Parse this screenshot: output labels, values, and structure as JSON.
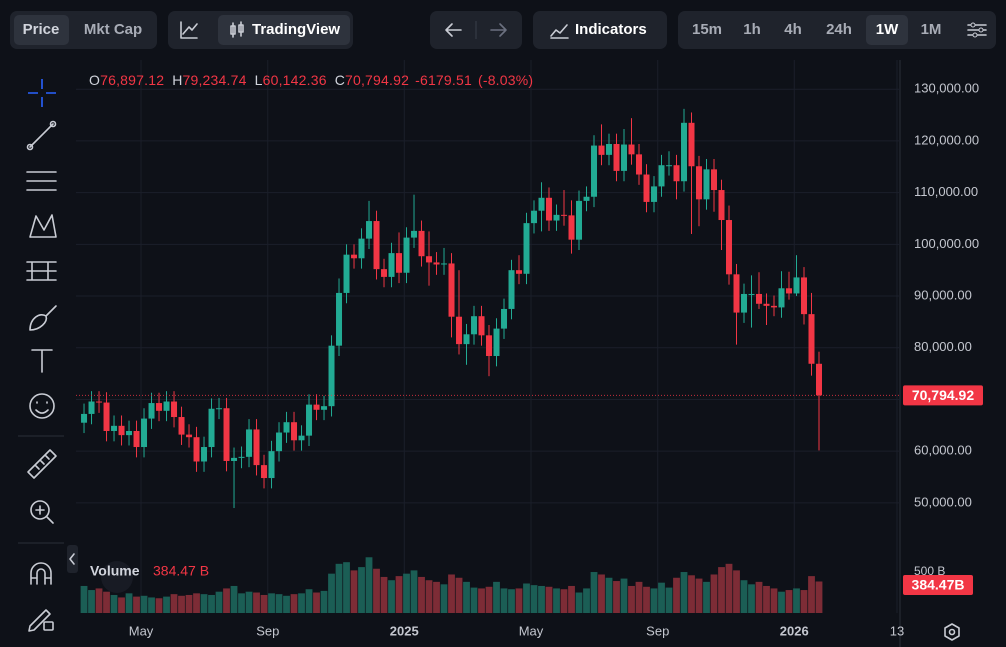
{
  "toolbar": {
    "price": "Price",
    "mkt_cap": "Mkt Cap",
    "tradingview": "TradingView",
    "indicators": "Indicators",
    "timeframes": [
      "15m",
      "1h",
      "4h",
      "24h",
      "1W",
      "1M"
    ],
    "active_timeframe": 4
  },
  "chart_data": {
    "type": "candlestick",
    "up_color": "#22ab94",
    "down_color": "#f23645",
    "ohlc_header": [
      {
        "key": "O",
        "label": "76,897.12"
      },
      {
        "key": "H",
        "label": "79,234.74"
      },
      {
        "key": "L",
        "label": "60,142.36"
      },
      {
        "key": "C",
        "label": "70,794.92"
      }
    ],
    "change_label": "-6179.51",
    "change_pct_label": "(-8.03%)",
    "last_price_label": "70,794.92",
    "xlim": [
      -1.07,
      108.8
    ],
    "xticks": [
      {
        "value": 7.6,
        "label": "May"
      },
      {
        "value": 24.5,
        "label": "Sep"
      },
      {
        "value": 42.7,
        "label": "2025"
      },
      {
        "value": 59.6,
        "label": "May"
      },
      {
        "value": 76.5,
        "label": "Sep"
      },
      {
        "value": 94.7,
        "label": "2026"
      },
      {
        "value": 108.4,
        "label": "13"
      }
    ],
    "ylim": [
      28700,
      134100
    ],
    "yticks": [
      {
        "value": 50000,
        "label": "50,000.00"
      },
      {
        "value": 60000,
        "label": "60,000.00"
      },
      {
        "value": 70000,
        "label": "70,000.00"
      },
      {
        "value": 80000,
        "label": "80,000.00"
      },
      {
        "value": 90000,
        "label": "90,000.00"
      },
      {
        "value": 100000,
        "label": "100,000.00"
      },
      {
        "value": 110000,
        "label": "110,000.00"
      },
      {
        "value": 120000,
        "label": "120,000.00"
      },
      {
        "value": 130000,
        "label": "130,000.00"
      }
    ],
    "open": [
      65500,
      67200,
      69600,
      69400,
      63900,
      64900,
      63100,
      63900,
      60800,
      66300,
      69300,
      67800,
      69600,
      66600,
      63200,
      62700,
      58000,
      60800,
      68200,
      68300,
      58100,
      58700,
      58900,
      64200,
      57300,
      54800,
      60000,
      63600,
      65600,
      62100,
      63000,
      69000,
      68000,
      68700,
      80400,
      90600,
      98000,
      97300,
      101100,
      104500,
      95200,
      93700,
      98300,
      94500,
      101300,
      102600,
      97700,
      96500,
      96100,
      96300,
      86000,
      80700,
      82600,
      86100,
      82400,
      78400,
      83700,
      87500,
      95000,
      94300,
      104100,
      106500,
      109000,
      104600,
      105700,
      105600,
      100900,
      108400,
      109200,
      119100,
      117300,
      119400,
      114200,
      119300,
      117400,
      113500,
      108200,
      111200,
      115300,
      115300,
      112200,
      123500,
      115100,
      108700,
      114500,
      110500,
      104700,
      94200,
      86800,
      90400,
      90400,
      88500,
      88100,
      87800,
      91500,
      90500,
      93600,
      86500,
      76897.12
    ],
    "high": [
      69200,
      71600,
      71600,
      71400,
      66900,
      66900,
      65900,
      65900,
      68300,
      71300,
      71300,
      71600,
      71600,
      68600,
      65200,
      64700,
      62800,
      70200,
      70300,
      70300,
      60700,
      60900,
      66200,
      66200,
      59300,
      62000,
      65600,
      67600,
      67600,
      65000,
      71000,
      71000,
      70700,
      82400,
      93400,
      100000,
      100000,
      103100,
      108400,
      106500,
      97200,
      100300,
      102300,
      103300,
      109600,
      104600,
      102500,
      98500,
      99300,
      98300,
      95000,
      84600,
      88100,
      88100,
      84400,
      85700,
      89500,
      97000,
      97900,
      106100,
      108500,
      112000,
      111000,
      107700,
      110500,
      108500,
      110400,
      111200,
      121100,
      123200,
      121400,
      121400,
      122300,
      124400,
      119400,
      115500,
      113200,
      117300,
      118000,
      117300,
      126200,
      125500,
      117100,
      116500,
      116500,
      112500,
      107500,
      96200,
      92400,
      94000,
      94600,
      90500,
      90100,
      94800,
      94700,
      97900,
      95600,
      90600,
      79234.74
    ],
    "low": [
      63500,
      65200,
      67400,
      61900,
      61900,
      61100,
      61100,
      58800,
      58800,
      64300,
      65800,
      65800,
      64600,
      61200,
      60700,
      56000,
      56000,
      58800,
      66200,
      56100,
      49000,
      56700,
      56900,
      55300,
      52800,
      52800,
      58000,
      61600,
      60100,
      60100,
      61000,
      66000,
      66000,
      66700,
      78400,
      88600,
      95300,
      95300,
      99100,
      93200,
      91700,
      91700,
      92500,
      92500,
      99300,
      95700,
      92000,
      94100,
      94100,
      82000,
      78700,
      76700,
      80600,
      80400,
      74500,
      76400,
      81700,
      85500,
      92300,
      92300,
      102100,
      102500,
      102600,
      102600,
      103600,
      98200,
      98900,
      106400,
      107200,
      115300,
      115300,
      112200,
      112200,
      115400,
      111500,
      106200,
      106200,
      109200,
      113300,
      108700,
      110200,
      102000,
      103500,
      106700,
      106300,
      98900,
      92200,
      80600,
      84800,
      83900,
      87500,
      84400,
      86100,
      85800,
      89300,
      90000,
      84500,
      74600,
      60142.36
    ],
    "close": [
      67200,
      69600,
      69400,
      63900,
      64900,
      63100,
      63900,
      60800,
      66300,
      69300,
      67800,
      69600,
      66600,
      63200,
      62700,
      58000,
      60800,
      68200,
      68300,
      58100,
      58700,
      58900,
      64200,
      57300,
      54800,
      60000,
      63600,
      65600,
      62100,
      63000,
      69000,
      68000,
      68700,
      80400,
      90600,
      98000,
      97300,
      101100,
      104500,
      95200,
      93700,
      98300,
      94500,
      101300,
      102600,
      97700,
      96500,
      96100,
      96300,
      86000,
      80700,
      82600,
      86100,
      82400,
      78400,
      83700,
      87500,
      95000,
      94300,
      104100,
      106500,
      109000,
      104600,
      105700,
      105600,
      100900,
      108400,
      109200,
      119100,
      117300,
      119400,
      114200,
      119300,
      117400,
      113500,
      108200,
      111200,
      115300,
      115300,
      112200,
      123500,
      115100,
      108700,
      114500,
      110500,
      104700,
      94200,
      86800,
      90400,
      90400,
      88500,
      88100,
      87800,
      91500,
      90500,
      93600,
      86500,
      76900,
      70794.92
    ],
    "volume": {
      "name": "Volume",
      "up_color": "#1b5e55",
      "down_color": "#7d2c36",
      "ylim": [
        0,
        6650
      ],
      "yticks": [
        {
          "value": 500,
          "label": "500 B"
        }
      ],
      "last_label": "384.47 B",
      "tag_label": "384.47B",
      "values": [
        330,
        280,
        300,
        260,
        220,
        190,
        240,
        200,
        210,
        190,
        180,
        200,
        230,
        210,
        220,
        240,
        230,
        220,
        260,
        300,
        330,
        240,
        260,
        250,
        220,
        240,
        230,
        210,
        230,
        240,
        290,
        250,
        270,
        480,
        600,
        620,
        520,
        560,
        680,
        540,
        440,
        400,
        450,
        480,
        520,
        440,
        400,
        380,
        350,
        470,
        430,
        380,
        310,
        300,
        320,
        380,
        300,
        290,
        300,
        360,
        340,
        330,
        320,
        300,
        290,
        330,
        250,
        300,
        500,
        470,
        430,
        390,
        420,
        330,
        380,
        320,
        300,
        370,
        310,
        430,
        500,
        460,
        420,
        380,
        470,
        560,
        600,
        520,
        400,
        350,
        380,
        330,
        300,
        260,
        280,
        300,
        280,
        450,
        384.47
      ]
    }
  }
}
